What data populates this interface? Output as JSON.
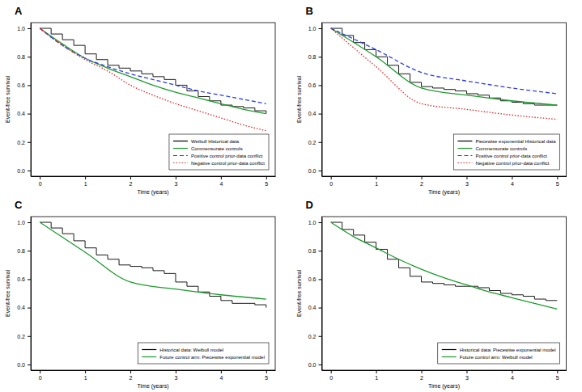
{
  "chart_data": [
    {
      "type": "line",
      "title": "A",
      "x_label": "Time (years)",
      "y_label": "Event-free survival",
      "xlim": [
        -0.2,
        5.2
      ],
      "ylim": [
        -0.04,
        1.04
      ],
      "xticks": [
        0,
        1,
        2,
        3,
        4,
        5
      ],
      "yticks": [
        {
          "value": 0,
          "label": "0.0"
        },
        0.2,
        0.4,
        0.6,
        0.8,
        {
          "value": 1,
          "label": "1.0"
        }
      ],
      "legend": "bottom-right",
      "series": [
        {
          "name": "Weibull Historical data",
          "type": "step",
          "color": "#000000",
          "line_style": "solid",
          "x": [
            0,
            0.25,
            0.5,
            0.75,
            1,
            1.25,
            1.5,
            1.75,
            2,
            2.25,
            2.5,
            2.75,
            3,
            3.25,
            3.5,
            3.75,
            4,
            4.25,
            4.5,
            4.75,
            5
          ],
          "values": [
            1,
            0.96,
            0.92,
            0.88,
            0.82,
            0.78,
            0.74,
            0.72,
            0.7,
            0.68,
            0.66,
            0.64,
            0.6,
            0.56,
            0.52,
            0.49,
            0.46,
            0.45,
            0.44,
            0.42,
            0.4
          ]
        },
        {
          "name": "Commensurate controls",
          "type": "line",
          "color": "#1f9a2e",
          "line_style": "solid",
          "x": [
            0,
            0.5,
            1,
            1.5,
            2,
            2.5,
            3,
            3.5,
            4,
            4.5,
            5
          ],
          "values": [
            1,
            0.89,
            0.79,
            0.72,
            0.66,
            0.6,
            0.55,
            0.51,
            0.47,
            0.43,
            0.4
          ]
        },
        {
          "name": "Positive control prior-data conflict",
          "type": "line",
          "color": "#2b3ee0",
          "line_style": "dashed",
          "x": [
            0,
            0.5,
            1,
            1.5,
            2,
            2.5,
            3,
            3.5,
            4,
            4.5,
            5
          ],
          "values": [
            1,
            0.88,
            0.79,
            0.73,
            0.68,
            0.64,
            0.6,
            0.56,
            0.53,
            0.5,
            0.47
          ]
        },
        {
          "name": "Negative control prior-data conflict",
          "type": "line",
          "color": "#d62728",
          "line_style": "dotted",
          "x": [
            0,
            0.5,
            1,
            1.5,
            2,
            2.5,
            3,
            3.5,
            4,
            4.5,
            5
          ],
          "values": [
            1,
            0.88,
            0.78,
            0.7,
            0.6,
            0.53,
            0.47,
            0.42,
            0.37,
            0.32,
            0.28
          ]
        }
      ]
    },
    {
      "type": "line",
      "title": "B",
      "x_label": "Time (years)",
      "y_label": "Event-free survival",
      "xlim": [
        -0.2,
        5.2
      ],
      "ylim": [
        -0.04,
        1.04
      ],
      "xticks": [
        0,
        1,
        2,
        3,
        4,
        5
      ],
      "yticks": [
        {
          "value": 0,
          "label": "0.0"
        },
        0.2,
        0.4,
        0.6,
        0.8,
        {
          "value": 1,
          "label": "1.0"
        }
      ],
      "legend": "bottom-right",
      "series": [
        {
          "name": "Piecewise exponential Historical data",
          "type": "step",
          "color": "#000000",
          "line_style": "solid",
          "x": [
            0,
            0.25,
            0.5,
            0.75,
            1,
            1.25,
            1.5,
            1.75,
            2,
            2.25,
            2.5,
            2.75,
            3,
            3.25,
            3.5,
            3.75,
            4,
            4.25,
            4.5,
            4.75,
            5
          ],
          "values": [
            1,
            0.95,
            0.9,
            0.85,
            0.8,
            0.74,
            0.68,
            0.62,
            0.59,
            0.58,
            0.57,
            0.56,
            0.54,
            0.53,
            0.51,
            0.49,
            0.48,
            0.47,
            0.46,
            0.46,
            0.46
          ]
        },
        {
          "name": "Commensurate controls",
          "type": "line",
          "color": "#1f9a2e",
          "line_style": "solid",
          "x": [
            0,
            1,
            2,
            3,
            4,
            5
          ],
          "values": [
            1,
            0.8,
            0.58,
            0.53,
            0.49,
            0.46
          ]
        },
        {
          "name": "Positive control prior-data conflict",
          "type": "line",
          "color": "#2b3ee0",
          "line_style": "dashed",
          "x": [
            0,
            1,
            2,
            3,
            4,
            5
          ],
          "values": [
            1,
            0.85,
            0.69,
            0.63,
            0.58,
            0.54
          ]
        },
        {
          "name": "Negative control prior-data conflict",
          "type": "line",
          "color": "#d62728",
          "line_style": "dotted",
          "x": [
            0,
            1,
            2,
            3,
            4,
            5
          ],
          "values": [
            1,
            0.73,
            0.47,
            0.43,
            0.39,
            0.36
          ]
        }
      ]
    },
    {
      "type": "line",
      "title": "C",
      "x_label": "Time (years)",
      "y_label": "Event-free survival",
      "xlim": [
        -0.2,
        5.2
      ],
      "ylim": [
        -0.04,
        1.04
      ],
      "xticks": [
        0,
        1,
        2,
        3,
        4,
        5
      ],
      "yticks": [
        {
          "value": 0,
          "label": "0.0"
        },
        0.2,
        0.4,
        0.6,
        0.8,
        {
          "value": 1,
          "label": "1.0"
        }
      ],
      "legend": "bottom-right",
      "series": [
        {
          "name": "Historical data: Weibull model",
          "type": "step",
          "color": "#000000",
          "line_style": "solid",
          "x": [
            0,
            0.25,
            0.5,
            0.75,
            1,
            1.25,
            1.5,
            1.75,
            2,
            2.25,
            2.5,
            2.75,
            3,
            3.25,
            3.5,
            3.75,
            4,
            4.25,
            4.5,
            4.75,
            5
          ],
          "values": [
            1,
            0.96,
            0.92,
            0.87,
            0.82,
            0.77,
            0.74,
            0.7,
            0.69,
            0.68,
            0.66,
            0.64,
            0.58,
            0.55,
            0.51,
            0.48,
            0.45,
            0.43,
            0.43,
            0.42,
            0.4
          ]
        },
        {
          "name": "Future control arm: Piecewise exponential model",
          "type": "line",
          "color": "#1f9a2e",
          "line_style": "solid",
          "x": [
            0,
            1,
            2,
            3,
            4,
            5
          ],
          "values": [
            1,
            0.79,
            0.58,
            0.53,
            0.49,
            0.46
          ]
        }
      ]
    },
    {
      "type": "line",
      "title": "D",
      "x_label": "Time (years)",
      "y_label": "Event-free survival",
      "xlim": [
        -0.2,
        5.2
      ],
      "ylim": [
        -0.04,
        1.04
      ],
      "xticks": [
        0,
        1,
        2,
        3,
        4,
        5
      ],
      "yticks": [
        {
          "value": 0,
          "label": "0.0"
        },
        0.2,
        0.4,
        0.6,
        0.8,
        {
          "value": 1,
          "label": "1.0"
        }
      ],
      "legend": "bottom-right",
      "series": [
        {
          "name": "Historical data: Piecewise exponential model",
          "type": "step",
          "color": "#000000",
          "line_style": "solid",
          "x": [
            0,
            0.25,
            0.5,
            0.75,
            1,
            1.25,
            1.5,
            1.75,
            2,
            2.25,
            2.5,
            2.75,
            3,
            3.25,
            3.5,
            3.75,
            4,
            4.25,
            4.5,
            4.75,
            5
          ],
          "values": [
            1,
            0.95,
            0.91,
            0.86,
            0.81,
            0.74,
            0.68,
            0.62,
            0.58,
            0.57,
            0.56,
            0.55,
            0.55,
            0.54,
            0.52,
            0.5,
            0.49,
            0.48,
            0.46,
            0.45,
            0.45
          ]
        },
        {
          "name": "Future control arm: Weibull model",
          "type": "line",
          "color": "#1f9a2e",
          "line_style": "solid",
          "x": [
            0,
            0.5,
            1,
            1.5,
            2,
            2.5,
            3,
            3.5,
            4,
            4.5,
            5
          ],
          "values": [
            1,
            0.9,
            0.82,
            0.74,
            0.67,
            0.61,
            0.56,
            0.51,
            0.47,
            0.43,
            0.39
          ]
        }
      ]
    }
  ]
}
